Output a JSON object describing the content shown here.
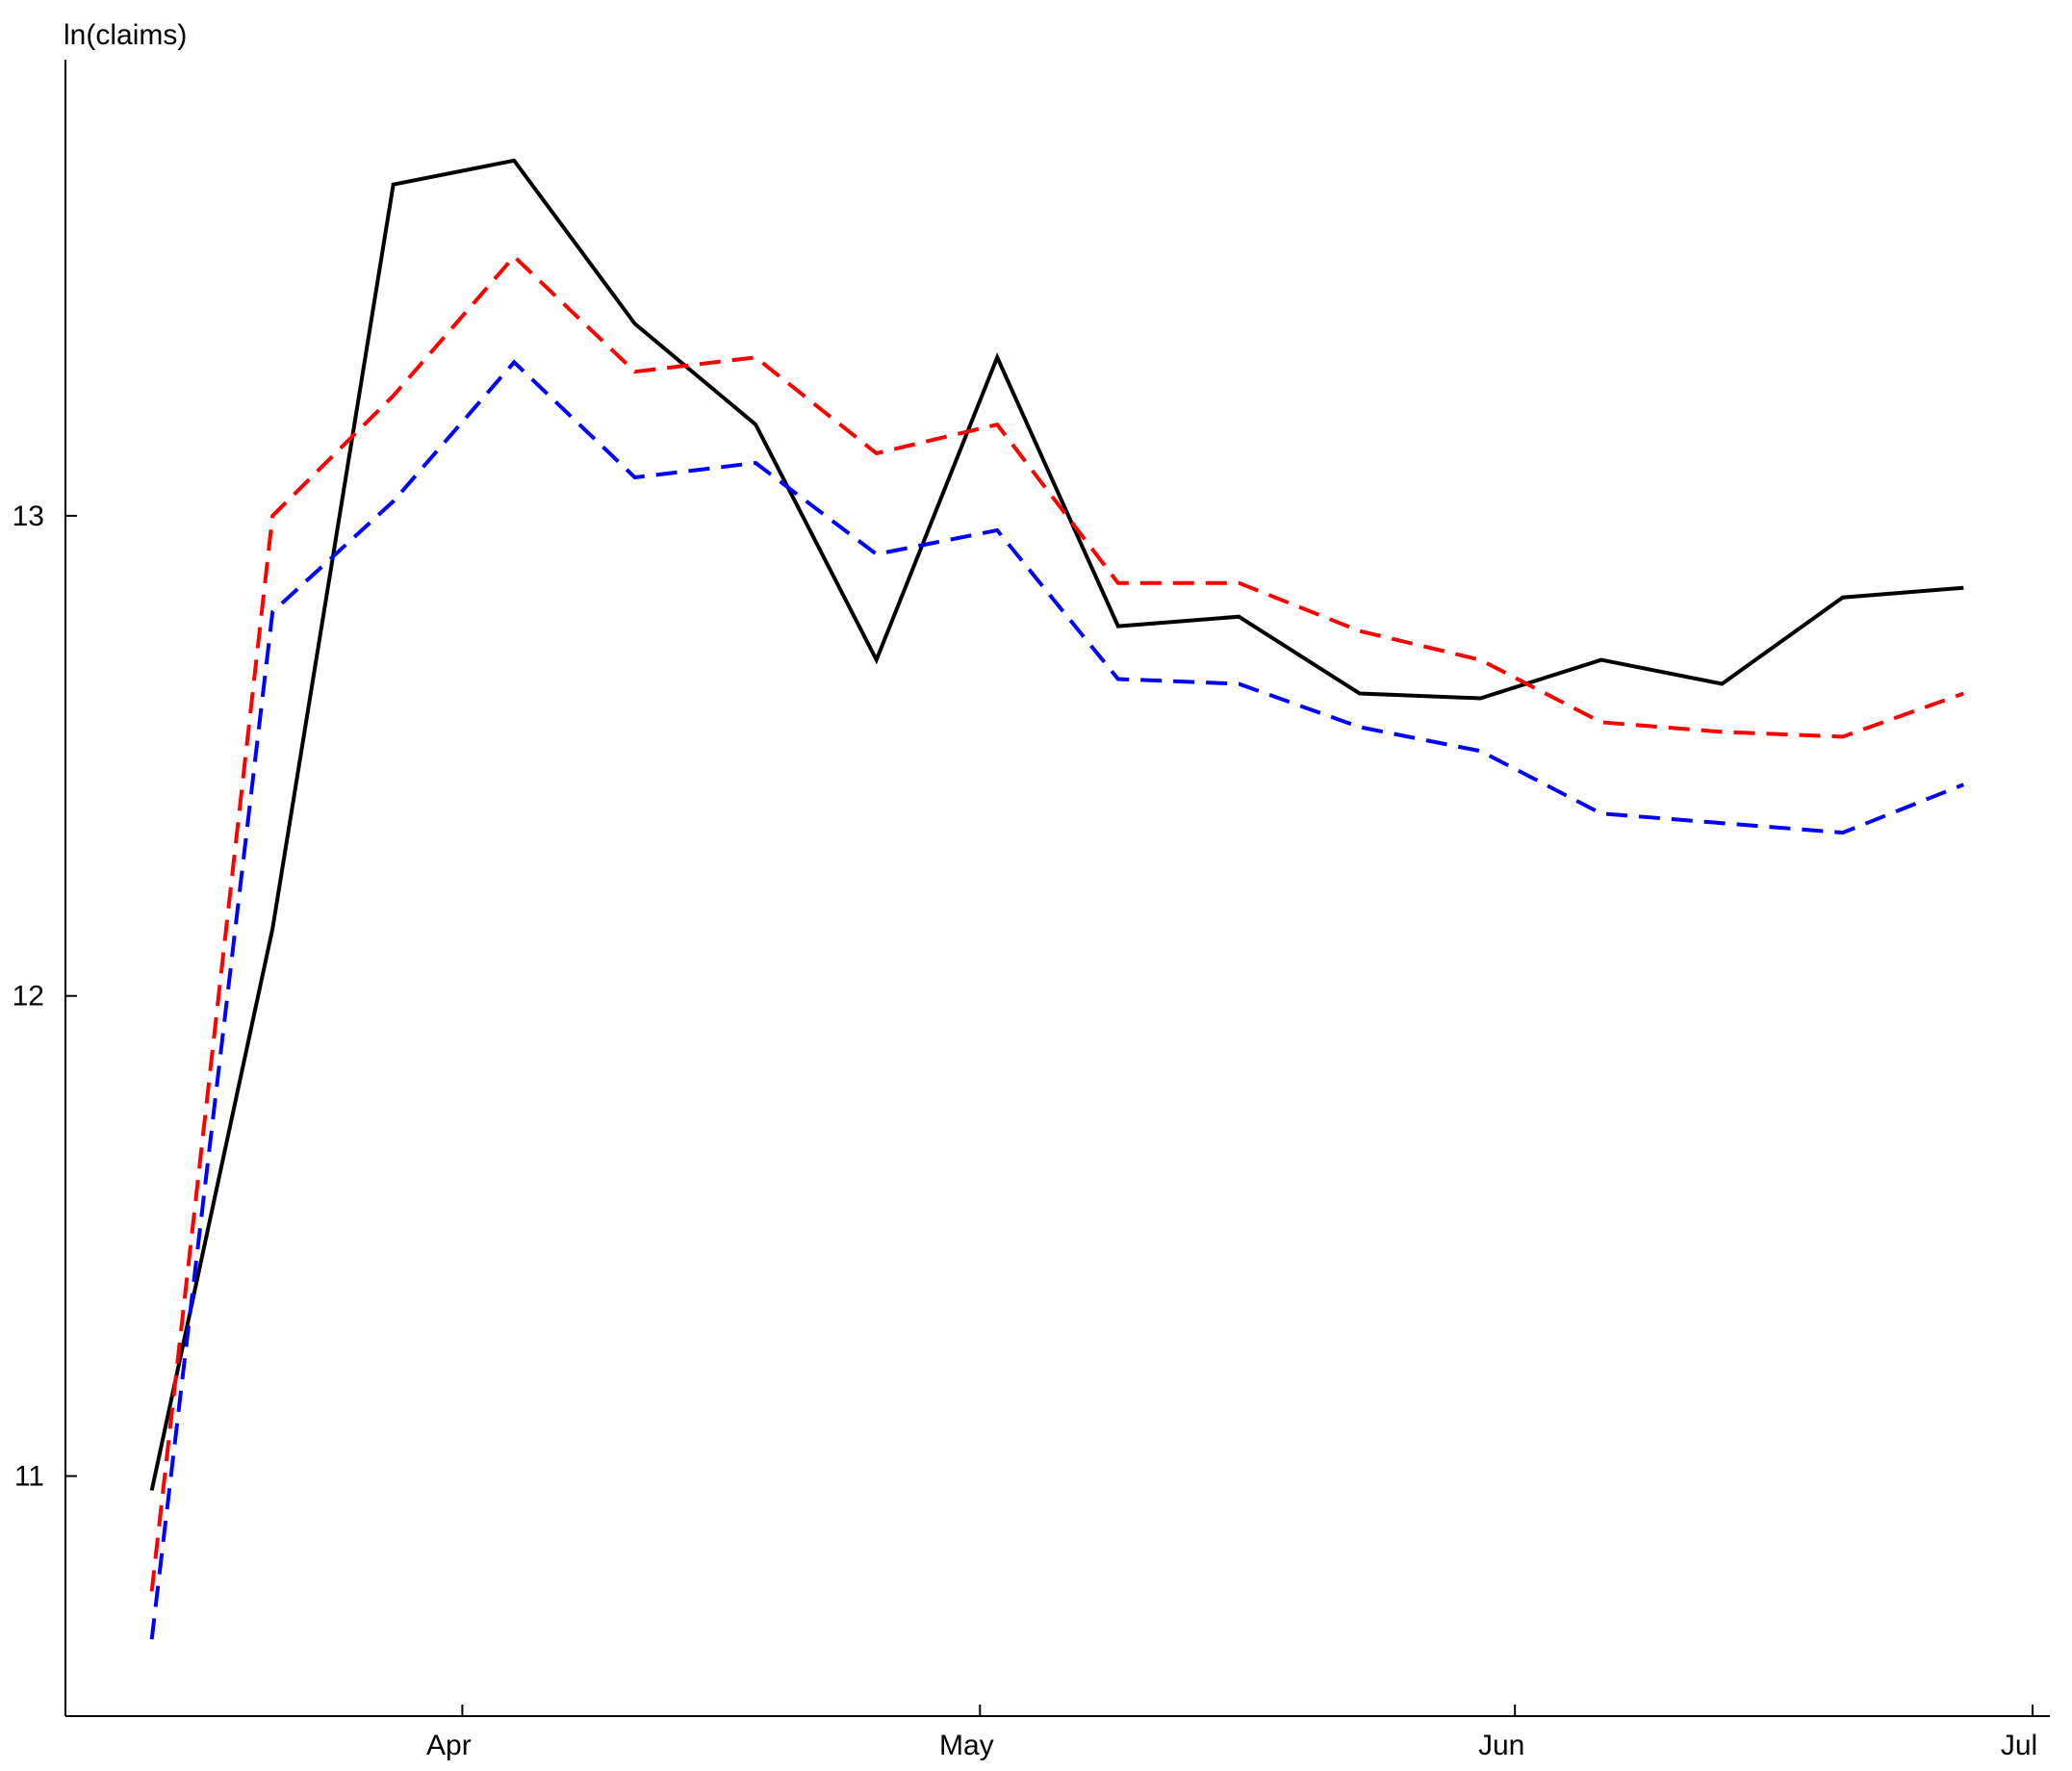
{
  "chart_data": {
    "type": "line",
    "title": "",
    "xlabel": "",
    "ylabel": "ln(claims)",
    "x": [
      "2020-03-14",
      "2020-03-21",
      "2020-03-28",
      "2020-04-04",
      "2020-04-11",
      "2020-04-18",
      "2020-04-25",
      "2020-05-02",
      "2020-05-09",
      "2020-05-16",
      "2020-05-23",
      "2020-05-30",
      "2020-06-06",
      "2020-06-13",
      "2020-06-20",
      "2020-06-27"
    ],
    "xlim": [
      "2020-03-09",
      "2020-07-02"
    ],
    "ylim": [
      10.5,
      13.95
    ],
    "x_ticks": [
      {
        "value": "2020-04-01",
        "label": "Apr"
      },
      {
        "value": "2020-05-01",
        "label": "May"
      },
      {
        "value": "2020-06-01",
        "label": "Jun"
      },
      {
        "value": "2020-07-01",
        "label": "Jul"
      }
    ],
    "y_ticks": [
      {
        "value": 11,
        "label": "11"
      },
      {
        "value": 12,
        "label": "12"
      },
      {
        "value": 13,
        "label": "13"
      }
    ],
    "grid": false,
    "legend": false,
    "series": [
      {
        "values": [
          10.97,
          12.14,
          13.69,
          13.74,
          13.4,
          13.19,
          12.7,
          13.33,
          12.77,
          12.79,
          12.63,
          12.62,
          12.7,
          12.65,
          12.83,
          12.85
        ],
        "color": "#000000",
        "style": "solid"
      },
      {
        "values": [
          10.76,
          13.0,
          13.25,
          13.54,
          13.3,
          13.33,
          13.13,
          13.19,
          12.86,
          12.86,
          12.76,
          12.7,
          12.57,
          12.55,
          12.54,
          12.63
        ],
        "color": "#ff0000",
        "style": "dashed"
      },
      {
        "values": [
          10.66,
          12.8,
          13.03,
          13.32,
          13.08,
          13.11,
          12.92,
          12.97,
          12.66,
          12.65,
          12.56,
          12.51,
          12.38,
          12.36,
          12.34,
          12.44
        ],
        "color": "#0000ff",
        "style": "dashed"
      }
    ]
  }
}
